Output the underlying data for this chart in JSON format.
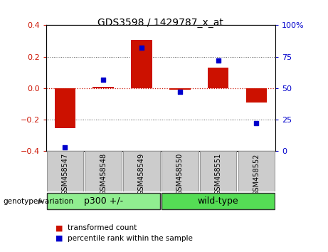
{
  "title": "GDS3598 / 1429787_x_at",
  "samples": [
    "GSM458547",
    "GSM458548",
    "GSM458549",
    "GSM458550",
    "GSM458551",
    "GSM458552"
  ],
  "transformed_count": [
    -0.255,
    0.01,
    0.305,
    -0.01,
    0.13,
    -0.09
  ],
  "percentile_rank": [
    3,
    57,
    82,
    47,
    72,
    22
  ],
  "ylim_left": [
    -0.4,
    0.4
  ],
  "ylim_right": [
    0,
    100
  ],
  "yticks_left": [
    -0.4,
    -0.2,
    0.0,
    0.2,
    0.4
  ],
  "yticks_right": [
    0,
    25,
    50,
    75,
    100
  ],
  "groups": [
    {
      "label": "p300 +/-",
      "indices": [
        0,
        1,
        2
      ],
      "color": "#90ee90"
    },
    {
      "label": "wild-type",
      "indices": [
        3,
        4,
        5
      ],
      "color": "#55dd55"
    }
  ],
  "bar_color": "#cc1100",
  "scatter_color": "#0000cc",
  "zero_line_color": "#cc1100",
  "dotted_line_color": "#555555",
  "bg_plot": "#ffffff",
  "bg_xtick": "#cccccc",
  "bar_width": 0.55,
  "legend_label_bar": "transformed count",
  "legend_label_scatter": "percentile rank within the sample",
  "genotype_label": "genotype/variation"
}
